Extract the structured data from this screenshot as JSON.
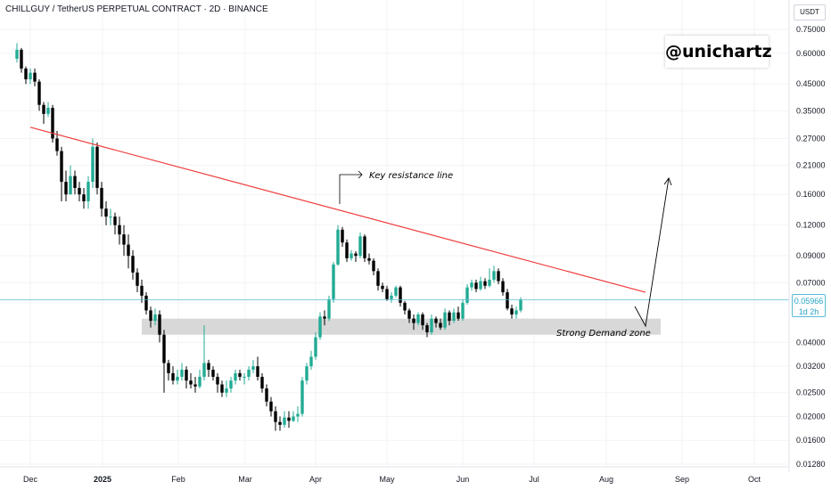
{
  "header": {
    "symbol_title": "CHILLGUY / TetherUS PERPETUAL CONTRACT · 2D · BINANCE",
    "watermark": "@unichartz",
    "currency": "USDT"
  },
  "last_price": {
    "value": "0.05966",
    "countdown": "1d 2h"
  },
  "annotations": {
    "resistance_label": "Key resistance line",
    "demand_label": "Strong Demand zone"
  },
  "colors": {
    "up": "#22ab94",
    "down": "#000000",
    "resistance": "#ef3b3b",
    "demand_zone": "#d6d6d6",
    "price_line": "#5bbcd6",
    "grid": "#f2f3f5"
  },
  "chart_data": {
    "type": "candlestick",
    "y_scale": "log",
    "y_ticks": [
      "0.75000",
      "0.60000",
      "0.45000",
      "0.35000",
      "0.27000",
      "0.21000",
      "0.16000",
      "0.12000",
      "0.09000",
      "0.07000",
      "0.04000",
      "0.03200",
      "0.02500",
      "0.02000",
      "0.01600",
      "0.01280"
    ],
    "x_ticks": [
      {
        "label": "Dec",
        "bold": false
      },
      {
        "label": "2025",
        "bold": true
      },
      {
        "label": "Feb",
        "bold": false
      },
      {
        "label": "Mar",
        "bold": false
      },
      {
        "label": "Apr",
        "bold": false
      },
      {
        "label": "May",
        "bold": false
      },
      {
        "label": "Jun",
        "bold": false
      },
      {
        "label": "Jul",
        "bold": false
      },
      {
        "label": "Aug",
        "bold": false
      },
      {
        "label": "Sep",
        "bold": false
      },
      {
        "label": "Oct",
        "bold": false
      }
    ],
    "candles": [
      [
        0.57,
        0.62,
        0.66,
        0.55
      ],
      [
        0.62,
        0.52,
        0.63,
        0.5
      ],
      [
        0.52,
        0.47,
        0.53,
        0.45
      ],
      [
        0.47,
        0.5,
        0.52,
        0.45
      ],
      [
        0.5,
        0.46,
        0.52,
        0.44
      ],
      [
        0.46,
        0.37,
        0.47,
        0.35
      ],
      [
        0.37,
        0.34,
        0.38,
        0.31
      ],
      [
        0.34,
        0.36,
        0.38,
        0.33
      ],
      [
        0.36,
        0.27,
        0.37,
        0.26
      ],
      [
        0.27,
        0.24,
        0.29,
        0.23
      ],
      [
        0.24,
        0.18,
        0.25,
        0.15
      ],
      [
        0.18,
        0.16,
        0.2,
        0.15
      ],
      [
        0.16,
        0.19,
        0.21,
        0.16
      ],
      [
        0.19,
        0.17,
        0.2,
        0.16
      ],
      [
        0.17,
        0.16,
        0.18,
        0.15
      ],
      [
        0.16,
        0.15,
        0.17,
        0.14
      ],
      [
        0.15,
        0.18,
        0.19,
        0.14
      ],
      [
        0.18,
        0.25,
        0.27,
        0.17
      ],
      [
        0.25,
        0.17,
        0.26,
        0.16
      ],
      [
        0.17,
        0.14,
        0.18,
        0.13
      ],
      [
        0.14,
        0.13,
        0.15,
        0.12
      ],
      [
        0.13,
        0.13,
        0.14,
        0.12
      ],
      [
        0.13,
        0.12,
        0.135,
        0.11
      ],
      [
        0.12,
        0.11,
        0.13,
        0.1
      ],
      [
        0.11,
        0.1,
        0.12,
        0.09
      ],
      [
        0.1,
        0.09,
        0.11,
        0.08
      ],
      [
        0.09,
        0.077,
        0.095,
        0.072
      ],
      [
        0.077,
        0.068,
        0.08,
        0.064
      ],
      [
        0.068,
        0.062,
        0.072,
        0.058
      ],
      [
        0.062,
        0.054,
        0.064,
        0.052
      ],
      [
        0.054,
        0.049,
        0.056,
        0.046
      ],
      [
        0.049,
        0.052,
        0.055,
        0.047
      ],
      [
        0.052,
        0.043,
        0.054,
        0.04
      ],
      [
        0.043,
        0.033,
        0.045,
        0.025
      ],
      [
        0.033,
        0.03,
        0.034,
        0.028
      ],
      [
        0.03,
        0.028,
        0.032,
        0.027
      ],
      [
        0.028,
        0.029,
        0.031,
        0.027
      ],
      [
        0.029,
        0.031,
        0.033,
        0.028
      ],
      [
        0.031,
        0.028,
        0.032,
        0.026
      ],
      [
        0.028,
        0.027,
        0.03,
        0.026
      ],
      [
        0.027,
        0.0265,
        0.029,
        0.025
      ],
      [
        0.0265,
        0.029,
        0.031,
        0.026
      ],
      [
        0.029,
        0.033,
        0.047,
        0.028
      ],
      [
        0.033,
        0.031,
        0.034,
        0.029
      ],
      [
        0.031,
        0.029,
        0.032,
        0.028
      ],
      [
        0.029,
        0.027,
        0.03,
        0.025
      ],
      [
        0.027,
        0.025,
        0.028,
        0.024
      ],
      [
        0.025,
        0.026,
        0.028,
        0.024
      ],
      [
        0.026,
        0.028,
        0.029,
        0.025
      ],
      [
        0.028,
        0.03,
        0.031,
        0.027
      ],
      [
        0.03,
        0.029,
        0.031,
        0.028
      ],
      [
        0.029,
        0.029,
        0.03,
        0.027
      ],
      [
        0.029,
        0.031,
        0.032,
        0.028
      ],
      [
        0.031,
        0.032,
        0.034,
        0.03
      ],
      [
        0.032,
        0.029,
        0.035,
        0.028
      ],
      [
        0.029,
        0.026,
        0.03,
        0.025
      ],
      [
        0.026,
        0.023,
        0.027,
        0.022
      ],
      [
        0.023,
        0.021,
        0.024,
        0.02
      ],
      [
        0.021,
        0.019,
        0.022,
        0.0175
      ],
      [
        0.019,
        0.0185,
        0.02,
        0.0175
      ],
      [
        0.0185,
        0.0198,
        0.021,
        0.018
      ],
      [
        0.0198,
        0.0192,
        0.021,
        0.018
      ],
      [
        0.0192,
        0.02,
        0.021,
        0.019
      ],
      [
        0.02,
        0.0205,
        0.022,
        0.019
      ],
      [
        0.0205,
        0.028,
        0.029,
        0.02
      ],
      [
        0.028,
        0.032,
        0.033,
        0.027
      ],
      [
        0.032,
        0.035,
        0.037,
        0.031
      ],
      [
        0.035,
        0.042,
        0.044,
        0.034
      ],
      [
        0.042,
        0.051,
        0.053,
        0.041
      ],
      [
        0.051,
        0.05,
        0.054,
        0.047
      ],
      [
        0.05,
        0.06,
        0.062,
        0.049
      ],
      [
        0.06,
        0.083,
        0.085,
        0.058
      ],
      [
        0.083,
        0.115,
        0.12,
        0.082
      ],
      [
        0.115,
        0.102,
        0.118,
        0.098
      ],
      [
        0.102,
        0.088,
        0.105,
        0.085
      ],
      [
        0.088,
        0.092,
        0.095,
        0.086
      ],
      [
        0.092,
        0.09,
        0.094,
        0.085
      ],
      [
        0.09,
        0.108,
        0.112,
        0.088
      ],
      [
        0.108,
        0.088,
        0.11,
        0.085
      ],
      [
        0.088,
        0.086,
        0.092,
        0.083
      ],
      [
        0.086,
        0.078,
        0.088,
        0.075
      ],
      [
        0.078,
        0.068,
        0.08,
        0.065
      ],
      [
        0.068,
        0.066,
        0.07,
        0.064
      ],
      [
        0.066,
        0.06,
        0.068,
        0.059
      ],
      [
        0.06,
        0.062,
        0.064,
        0.058
      ],
      [
        0.062,
        0.067,
        0.068,
        0.061
      ],
      [
        0.067,
        0.058,
        0.068,
        0.056
      ],
      [
        0.058,
        0.054,
        0.059,
        0.052
      ],
      [
        0.054,
        0.05,
        0.055,
        0.048
      ],
      [
        0.05,
        0.048,
        0.052,
        0.045
      ],
      [
        0.048,
        0.052,
        0.053,
        0.047
      ],
      [
        0.052,
        0.047,
        0.053,
        0.045
      ],
      [
        0.047,
        0.044,
        0.048,
        0.042
      ],
      [
        0.044,
        0.05,
        0.052,
        0.043
      ],
      [
        0.05,
        0.048,
        0.051,
        0.046
      ],
      [
        0.048,
        0.046,
        0.05,
        0.045
      ],
      [
        0.046,
        0.053,
        0.055,
        0.045
      ],
      [
        0.053,
        0.049,
        0.054,
        0.047
      ],
      [
        0.049,
        0.053,
        0.055,
        0.048
      ],
      [
        0.053,
        0.05,
        0.056,
        0.049
      ],
      [
        0.05,
        0.058,
        0.06,
        0.049
      ],
      [
        0.058,
        0.067,
        0.069,
        0.057
      ],
      [
        0.067,
        0.07,
        0.072,
        0.065
      ],
      [
        0.07,
        0.066,
        0.072,
        0.064
      ],
      [
        0.066,
        0.071,
        0.074,
        0.065
      ],
      [
        0.071,
        0.068,
        0.073,
        0.066
      ],
      [
        0.068,
        0.072,
        0.08,
        0.067
      ],
      [
        0.072,
        0.078,
        0.082,
        0.07
      ],
      [
        0.078,
        0.071,
        0.08,
        0.069
      ],
      [
        0.071,
        0.064,
        0.073,
        0.062
      ],
      [
        0.064,
        0.055,
        0.066,
        0.054
      ],
      [
        0.055,
        0.052,
        0.057,
        0.05
      ],
      [
        0.052,
        0.054,
        0.056,
        0.05
      ],
      [
        0.054,
        0.0597,
        0.061,
        0.053
      ]
    ],
    "resistance_line": {
      "from": [
        3,
        0.3
      ],
      "to": [
        141,
        0.064
      ]
    },
    "demand_zone": {
      "x_start": 29,
      "x_end": 143,
      "y_low": 0.043,
      "y_high": 0.05
    },
    "last_price": 0.05966
  }
}
